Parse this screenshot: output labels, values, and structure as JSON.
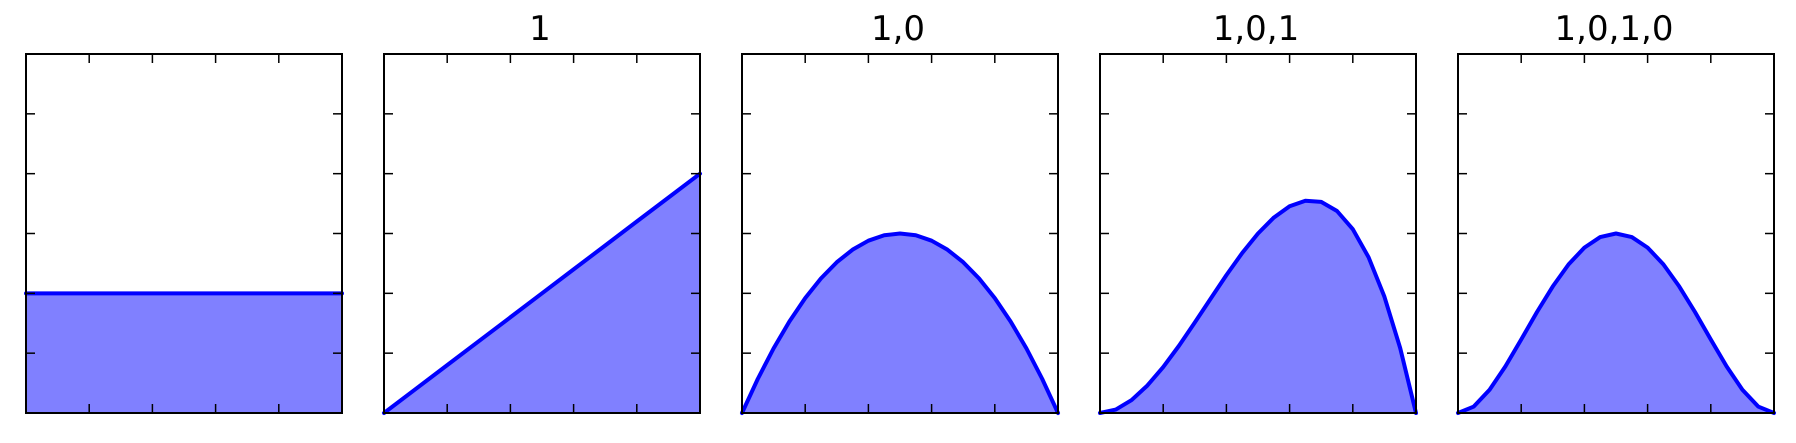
{
  "figure": {
    "line_color": "#0000ff",
    "fill_color": "#8080ff",
    "axes_color": "#000000",
    "background": "#ffffff"
  },
  "chart_data": [
    {
      "type": "area",
      "title": "",
      "xlim": [
        0,
        1
      ],
      "ylim": [
        0,
        3
      ],
      "grid": false,
      "tick_labels": false,
      "x_ticks": [
        0.2,
        0.4,
        0.6,
        0.8
      ],
      "y_ticks": [
        0.5,
        1.0,
        1.5,
        2.0,
        2.5
      ],
      "x": [
        0,
        0.1,
        0.2,
        0.3,
        0.4,
        0.5,
        0.6,
        0.7,
        0.8,
        0.9,
        1.0
      ],
      "y": [
        1,
        1,
        1,
        1,
        1,
        1,
        1,
        1,
        1,
        1,
        1
      ]
    },
    {
      "type": "area",
      "title": "1",
      "xlim": [
        0,
        1
      ],
      "ylim": [
        0,
        3
      ],
      "grid": false,
      "tick_labels": false,
      "x_ticks": [
        0.2,
        0.4,
        0.6,
        0.8
      ],
      "y_ticks": [
        0.5,
        1.0,
        1.5,
        2.0,
        2.5
      ],
      "x": [
        0,
        0.1,
        0.2,
        0.3,
        0.4,
        0.5,
        0.6,
        0.7,
        0.8,
        0.9,
        1.0
      ],
      "y": [
        0,
        0.2,
        0.4,
        0.6,
        0.8,
        1.0,
        1.2,
        1.4,
        1.6,
        1.8,
        2.0
      ]
    },
    {
      "type": "area",
      "title": "1,0",
      "xlim": [
        0,
        1
      ],
      "ylim": [
        0,
        3
      ],
      "grid": false,
      "tick_labels": false,
      "x_ticks": [
        0.2,
        0.4,
        0.6,
        0.8
      ],
      "y_ticks": [
        0.5,
        1.0,
        1.5,
        2.0,
        2.5
      ],
      "x": [
        0,
        0.05,
        0.1,
        0.15,
        0.2,
        0.25,
        0.3,
        0.35,
        0.4,
        0.45,
        0.5,
        0.55,
        0.6,
        0.65,
        0.7,
        0.75,
        0.8,
        0.85,
        0.9,
        0.95,
        1.0
      ],
      "y": [
        0,
        0.285,
        0.54,
        0.765,
        0.96,
        1.125,
        1.26,
        1.365,
        1.44,
        1.485,
        1.5,
        1.485,
        1.44,
        1.365,
        1.26,
        1.125,
        0.96,
        0.765,
        0.54,
        0.285,
        0
      ]
    },
    {
      "type": "area",
      "title": "1,0,1",
      "xlim": [
        0,
        1
      ],
      "ylim": [
        0,
        3
      ],
      "grid": false,
      "tick_labels": false,
      "x_ticks": [
        0.2,
        0.4,
        0.6,
        0.8
      ],
      "y_ticks": [
        0.5,
        1.0,
        1.5,
        2.0,
        2.5
      ],
      "x": [
        0,
        0.05,
        0.1,
        0.15,
        0.2,
        0.25,
        0.3,
        0.35,
        0.4,
        0.45,
        0.5,
        0.55,
        0.6,
        0.65,
        0.7,
        0.75,
        0.8,
        0.85,
        0.9,
        0.95,
        1.0
      ],
      "y": [
        0,
        0.029,
        0.108,
        0.23,
        0.384,
        0.562,
        0.756,
        0.955,
        1.152,
        1.337,
        1.5,
        1.633,
        1.728,
        1.774,
        1.764,
        1.688,
        1.536,
        1.301,
        0.972,
        0.542,
        0
      ]
    },
    {
      "type": "area",
      "title": "1,0,1,0",
      "xlim": [
        0,
        1
      ],
      "ylim": [
        0,
        3
      ],
      "grid": false,
      "tick_labels": false,
      "x_ticks": [
        0.2,
        0.4,
        0.6,
        0.8
      ],
      "y_ticks": [
        0.5,
        1.0,
        1.5,
        2.0,
        2.5
      ],
      "x": [
        0,
        0.05,
        0.1,
        0.15,
        0.2,
        0.25,
        0.3,
        0.35,
        0.4,
        0.45,
        0.5,
        0.55,
        0.6,
        0.65,
        0.7,
        0.75,
        0.8,
        0.85,
        0.9,
        0.95,
        1.0
      ],
      "y": [
        0,
        0.054,
        0.194,
        0.39,
        0.614,
        0.844,
        1.058,
        1.242,
        1.382,
        1.47,
        1.5,
        1.47,
        1.382,
        1.242,
        1.058,
        0.844,
        0.614,
        0.39,
        0.194,
        0.054,
        0
      ]
    }
  ]
}
